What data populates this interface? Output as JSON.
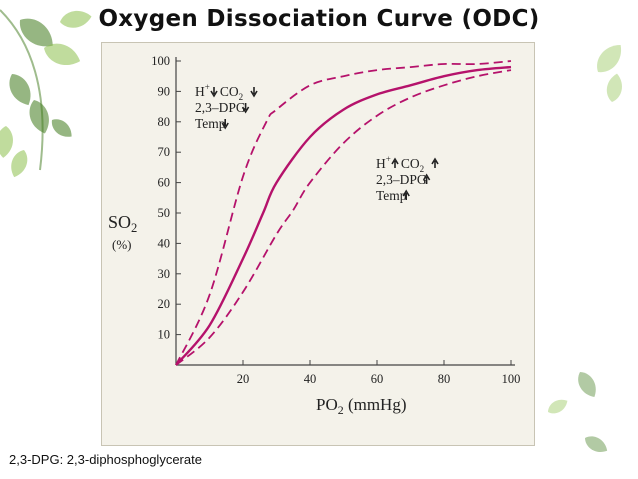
{
  "slide": {
    "title": "Oxygen Dissociation Curve (ODC)",
    "footnote": "2,3-DPG: 2,3-diphosphoglycerate"
  },
  "colors": {
    "curve": "#b5126b",
    "axis": "#444444",
    "panel": "#f4f2ea",
    "leaf_dark": "#3f7a1c",
    "leaf_light": "#8cc04c"
  },
  "icons": [
    "leaf-decoration-icon",
    "arrow-up-icon",
    "arrow-down-icon"
  ],
  "chart_data": {
    "type": "line",
    "title": "",
    "xlabel": "PO2 (mmHg)",
    "ylabel": "SO2 (%)",
    "xlim": [
      0,
      100
    ],
    "ylim": [
      0,
      100
    ],
    "xticks": [
      20,
      40,
      60,
      80,
      100
    ],
    "yticks": [
      10,
      20,
      30,
      40,
      50,
      60,
      70,
      80,
      90,
      100
    ],
    "grid": false,
    "series": [
      {
        "style": "dashed",
        "x": [
          0,
          10,
          20,
          27,
          30,
          40,
          50,
          60,
          70,
          80,
          90,
          100
        ],
        "y": [
          0,
          23,
          62,
          80,
          84,
          92,
          95,
          97,
          98,
          99,
          99,
          100
        ]
      },
      {
        "style": "solid",
        "x": [
          0,
          10,
          20,
          26,
          30,
          40,
          50,
          60,
          70,
          80,
          90,
          100
        ],
        "y": [
          0,
          13,
          35,
          50,
          60,
          75,
          84,
          89,
          92,
          95,
          97,
          98
        ]
      },
      {
        "style": "dashed",
        "x": [
          0,
          10,
          20,
          30,
          35,
          40,
          50,
          60,
          70,
          80,
          90,
          100
        ],
        "y": [
          0,
          9,
          24,
          43,
          51,
          60,
          73,
          82,
          88,
          92,
          95,
          97
        ]
      }
    ],
    "annotations": [
      {
        "position": "upper-left",
        "lines": [
          {
            "parts": [
              "H",
              "+",
              "CO",
              "2"
            ],
            "arrows": [
              "down",
              "down"
            ]
          },
          {
            "text": "2,3–DPG",
            "arrow": "down"
          },
          {
            "text": "Temp",
            "arrow": "down"
          }
        ]
      },
      {
        "position": "right",
        "lines": [
          {
            "parts": [
              "H",
              "+",
              "CO",
              "2"
            ],
            "arrows": [
              "up",
              "up"
            ]
          },
          {
            "text": "2,3–DPG",
            "arrow": "up"
          },
          {
            "text": "Temp",
            "arrow": "up"
          }
        ]
      }
    ]
  }
}
